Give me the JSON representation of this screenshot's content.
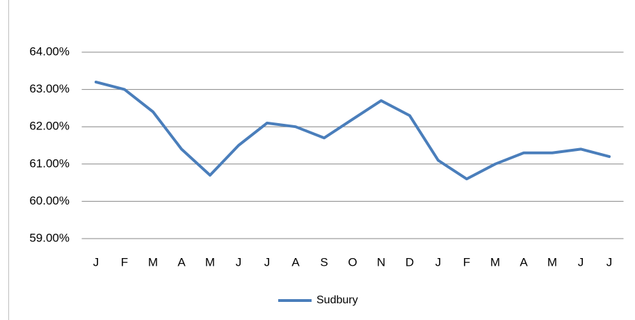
{
  "chart_data": {
    "type": "line",
    "categories": [
      "J",
      "F",
      "M",
      "A",
      "M",
      "J",
      "J",
      "A",
      "S",
      "O",
      "N",
      "D",
      "J",
      "F",
      "M",
      "A",
      "M",
      "J",
      "J"
    ],
    "series": [
      {
        "name": "Sudbury",
        "color": "#4a7ebb",
        "values": [
          63.2,
          63.0,
          62.4,
          61.4,
          60.7,
          61.5,
          62.1,
          62.0,
          61.7,
          62.2,
          62.7,
          62.3,
          61.1,
          60.6,
          61.0,
          61.3,
          61.3,
          61.4,
          61.2
        ]
      }
    ],
    "ylim": [
      59,
      64
    ],
    "yticks": [
      {
        "value": 59,
        "label": "59.00%"
      },
      {
        "value": 60,
        "label": "60.00%"
      },
      {
        "value": 61,
        "label": "61.00%"
      },
      {
        "value": 62,
        "label": "62.00%"
      },
      {
        "value": 63,
        "label": "63.00%"
      },
      {
        "value": 64,
        "label": "64.00%"
      }
    ],
    "grid": true,
    "legend": "bottom"
  }
}
